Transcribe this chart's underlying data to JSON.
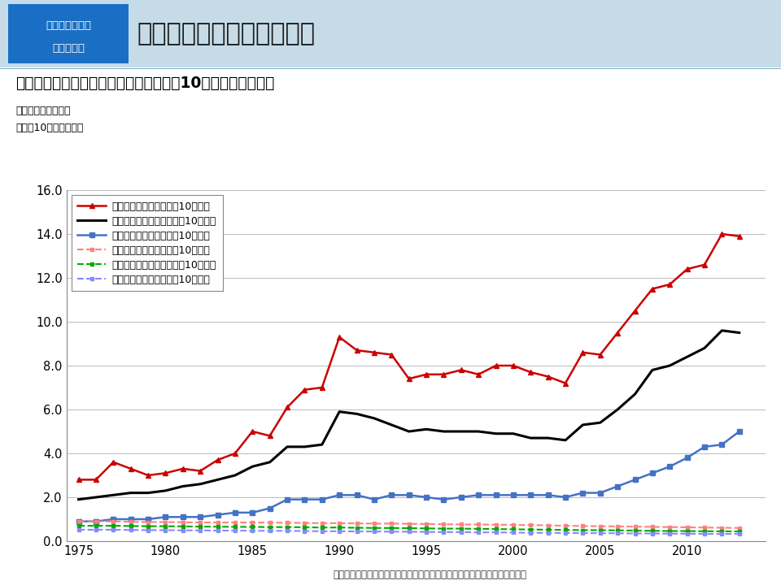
{
  "title_main": "甲状腺がんの罹患率：日本",
  "title_box_line1": "甲状腺に関する",
  "title_box_line2": "基礎的情報",
  "subtitle": "日本の年齢調整罹患率と死亡率（対人口10万人）の年次推移",
  "ylabel1": "（罹患率・死亡率）",
  "ylabel2": "（人口10万人あたり）",
  "source": "出典：国立がん研究センターがん情報サービス「がん登録・統計」より作成",
  "bg_header": "#c5dce8",
  "box_bg": "#1a6fc4",
  "plot_bg": "#ffffff",
  "years": [
    1975,
    1976,
    1977,
    1978,
    1979,
    1980,
    1981,
    1982,
    1983,
    1984,
    1985,
    1986,
    1987,
    1988,
    1989,
    1990,
    1991,
    1992,
    1993,
    1994,
    1995,
    1996,
    1997,
    1998,
    1999,
    2000,
    2001,
    2002,
    2003,
    2004,
    2005,
    2006,
    2007,
    2008,
    2009,
    2010,
    2011,
    2012,
    2013
  ],
  "incidence_female": [
    2.8,
    2.8,
    3.6,
    3.3,
    3.0,
    3.1,
    3.3,
    3.2,
    3.7,
    4.0,
    5.0,
    4.8,
    6.1,
    6.9,
    7.0,
    9.3,
    8.7,
    8.6,
    8.5,
    7.4,
    7.6,
    7.6,
    7.8,
    7.6,
    8.0,
    8.0,
    7.7,
    7.5,
    7.2,
    8.6,
    8.5,
    9.5,
    10.5,
    11.5,
    11.7,
    12.4,
    12.6,
    14.0,
    13.9
  ],
  "incidence_both": [
    1.9,
    2.0,
    2.1,
    2.2,
    2.2,
    2.3,
    2.5,
    2.6,
    2.8,
    3.0,
    3.4,
    3.6,
    4.3,
    4.3,
    4.4,
    5.9,
    5.8,
    5.6,
    5.3,
    5.0,
    5.1,
    5.0,
    5.0,
    5.0,
    4.9,
    4.9,
    4.7,
    4.7,
    4.6,
    5.3,
    5.4,
    6.0,
    6.7,
    7.8,
    8.0,
    8.4,
    8.8,
    9.6,
    9.5
  ],
  "incidence_male": [
    0.9,
    0.9,
    1.0,
    1.0,
    1.0,
    1.1,
    1.1,
    1.1,
    1.2,
    1.3,
    1.3,
    1.5,
    1.9,
    1.9,
    1.9,
    2.1,
    2.1,
    1.9,
    2.1,
    2.1,
    2.0,
    1.9,
    2.0,
    2.1,
    2.1,
    2.1,
    2.1,
    2.1,
    2.0,
    2.2,
    2.2,
    2.5,
    2.8,
    3.1,
    3.4,
    3.8,
    4.3,
    4.4,
    5.0
  ],
  "mortality_female": [
    0.9,
    0.9,
    0.9,
    0.88,
    0.87,
    0.87,
    0.86,
    0.85,
    0.85,
    0.85,
    0.85,
    0.84,
    0.84,
    0.83,
    0.82,
    0.82,
    0.81,
    0.8,
    0.8,
    0.79,
    0.78,
    0.77,
    0.76,
    0.76,
    0.75,
    0.74,
    0.73,
    0.72,
    0.7,
    0.69,
    0.68,
    0.67,
    0.66,
    0.65,
    0.64,
    0.63,
    0.62,
    0.61,
    0.6
  ],
  "mortality_both": [
    0.7,
    0.7,
    0.7,
    0.69,
    0.68,
    0.68,
    0.67,
    0.66,
    0.66,
    0.65,
    0.65,
    0.64,
    0.64,
    0.63,
    0.62,
    0.62,
    0.61,
    0.6,
    0.6,
    0.59,
    0.58,
    0.57,
    0.57,
    0.56,
    0.55,
    0.54,
    0.53,
    0.52,
    0.51,
    0.5,
    0.5,
    0.49,
    0.48,
    0.47,
    0.46,
    0.46,
    0.45,
    0.45,
    0.44
  ],
  "mortality_male": [
    0.52,
    0.52,
    0.52,
    0.51,
    0.5,
    0.5,
    0.49,
    0.49,
    0.48,
    0.48,
    0.47,
    0.47,
    0.47,
    0.46,
    0.45,
    0.45,
    0.44,
    0.44,
    0.43,
    0.43,
    0.42,
    0.41,
    0.41,
    0.4,
    0.4,
    0.39,
    0.38,
    0.38,
    0.37,
    0.37,
    0.36,
    0.36,
    0.35,
    0.35,
    0.34,
    0.34,
    0.33,
    0.33,
    0.33
  ],
  "ylim": [
    0.0,
    16.0
  ],
  "yticks": [
    0.0,
    2.0,
    4.0,
    6.0,
    8.0,
    10.0,
    12.0,
    14.0,
    16.0
  ],
  "xlim_left": 1974.3,
  "xlim_right": 2014.5,
  "xticks": [
    1975,
    1980,
    1985,
    1990,
    1995,
    2000,
    2005,
    2010
  ],
  "color_female": "#cc0000",
  "color_both": "#000000",
  "color_male": "#4472c4",
  "color_mort_female": "#ff8080",
  "color_mort_both": "#00aa00",
  "color_mort_male": "#8888ff",
  "legend_entries": [
    "罹患率：女性　（対人口10万人）",
    "罹患率：男女計　（対人口10万人）",
    "罹患率：男性　（対人口10万人）",
    "死亡率：女性　（対人口10万人）",
    "死亡率：男女計　（対人口10万人）",
    "死亡率：男性　（対人口10万人）"
  ]
}
